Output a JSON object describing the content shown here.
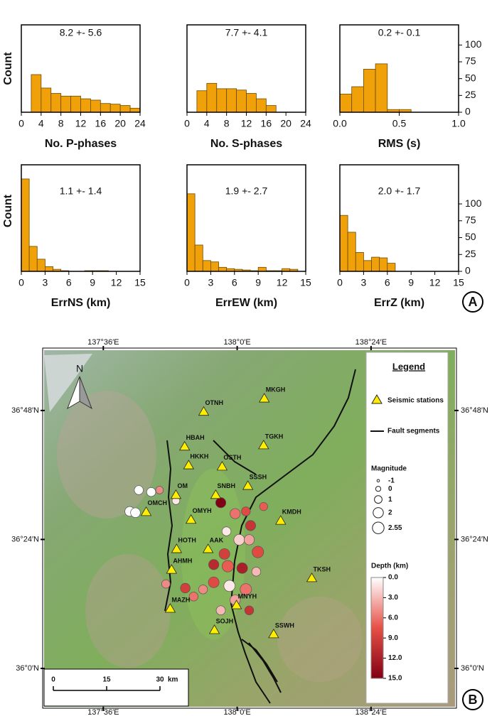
{
  "panel_labels": [
    "A",
    "B"
  ],
  "chart_data": [
    {
      "type": "histogram",
      "xlabel": "No. P-phases",
      "ylabel": "Count",
      "annotation": "8.2 +- 5.6",
      "color": "#f0a10a",
      "bins": [
        2,
        4,
        6,
        8,
        10,
        12,
        14,
        16,
        18,
        20,
        22,
        24
      ],
      "values": [
        56,
        36,
        28,
        24,
        24,
        20,
        18,
        13,
        12,
        10,
        6
      ],
      "xlim": [
        0,
        24
      ],
      "xticks": [
        0,
        4,
        8,
        12,
        16,
        20,
        24
      ],
      "ylim": [
        0,
        130
      ]
    },
    {
      "type": "histogram",
      "xlabel": "No. S-phases",
      "annotation": "7.7 +- 4.1",
      "color": "#f0a10a",
      "bins": [
        2,
        4,
        6,
        8,
        10,
        12,
        14,
        16,
        18
      ],
      "values": [
        32,
        43,
        35,
        35,
        33,
        28,
        20,
        10
      ],
      "xlim": [
        0,
        24
      ],
      "xticks": [
        0,
        4,
        8,
        12,
        16,
        20,
        24
      ],
      "ylim": [
        0,
        130
      ]
    },
    {
      "type": "histogram",
      "xlabel": "RMS (s)",
      "annotation": "0.2 +- 0.1",
      "color": "#f0a10a",
      "bins": [
        0,
        0.1,
        0.2,
        0.3,
        0.4,
        0.5,
        0.6
      ],
      "values": [
        27,
        38,
        64,
        72,
        4,
        4
      ],
      "xlim": [
        0,
        1
      ],
      "xticks": [
        {
          "value": 0,
          "label": "0.0"
        },
        {
          "value": 0.5,
          "label": "0.5"
        },
        {
          "value": 1,
          "label": "1.0"
        }
      ],
      "ylim": [
        0,
        130
      ],
      "yticks": [
        0,
        25,
        50,
        75,
        100
      ]
    },
    {
      "type": "histogram",
      "xlabel": "ErrNS (km)",
      "ylabel": "Count",
      "annotation": "1.1 +- 1.4",
      "color": "#f0a10a",
      "bins": [
        0,
        1,
        2,
        3,
        4,
        5,
        6,
        7,
        8,
        9,
        10,
        11,
        12
      ],
      "values": [
        137,
        37,
        18,
        7,
        3,
        1,
        0,
        0,
        1,
        1,
        1,
        0
      ],
      "xlim": [
        0,
        15
      ],
      "xticks": [
        0,
        3,
        6,
        9,
        12,
        15
      ],
      "ylim": [
        0,
        158
      ]
    },
    {
      "type": "histogram",
      "xlabel": "ErrEW (km)",
      "annotation": "1.9 +- 2.7",
      "color": "#f0a10a",
      "bins": [
        0,
        1,
        2,
        3,
        4,
        5,
        6,
        7,
        8,
        9,
        10,
        11,
        12,
        13,
        14
      ],
      "values": [
        115,
        39,
        16,
        14,
        6,
        4,
        3,
        2,
        1,
        6,
        1,
        1,
        4,
        3
      ],
      "xlim": [
        0,
        15
      ],
      "xticks": [
        0,
        3,
        6,
        9,
        12,
        15
      ],
      "ylim": [
        0,
        158
      ]
    },
    {
      "type": "histogram",
      "xlabel": "ErrZ (km)",
      "annotation": "2.0 +- 1.7",
      "color": "#f0a10a",
      "bins": [
        0,
        1,
        2,
        3,
        4,
        5,
        6,
        7
      ],
      "values": [
        83,
        58,
        28,
        16,
        21,
        20,
        12
      ],
      "xlim": [
        0,
        15
      ],
      "xticks": [
        0,
        3,
        6,
        9,
        12,
        15
      ],
      "ylim": [
        0,
        158
      ],
      "yticks": [
        0,
        25,
        50,
        75,
        100
      ]
    },
    {
      "type": "map",
      "xlim": [
        137.423,
        138.651
      ],
      "ylim": [
        35.881,
        36.987
      ],
      "xticks": [
        {
          "value": 137.6,
          "label": "137°36′E"
        },
        {
          "value": 138.0,
          "label": "138°0′E"
        },
        {
          "value": 138.4,
          "label": "138°24′E"
        }
      ],
      "yticks": [
        {
          "value": 36.8,
          "label": "36°48′N"
        },
        {
          "value": 36.4,
          "label": "36°24′N"
        },
        {
          "value": 36.0,
          "label": "36°0′N"
        }
      ],
      "stations": [
        {
          "name": "MKGH",
          "lon": 138.081,
          "lat": 36.837
        },
        {
          "name": "OTNH",
          "lon": 137.9,
          "lat": 36.796
        },
        {
          "name": "HBAH",
          "lon": 137.843,
          "lat": 36.688
        },
        {
          "name": "TGKH",
          "lon": 138.079,
          "lat": 36.692
        },
        {
          "name": "HKKH",
          "lon": 137.855,
          "lat": 36.63
        },
        {
          "name": "OSTH",
          "lon": 137.955,
          "lat": 36.626
        },
        {
          "name": "SSSH",
          "lon": 138.032,
          "lat": 36.566
        },
        {
          "name": "SNBH",
          "lon": 137.936,
          "lat": 36.538
        },
        {
          "name": "OMCH",
          "lon": 137.728,
          "lat": 36.485
        },
        {
          "name": "OM",
          "lon": 137.817,
          "lat": 36.538
        },
        {
          "name": "OMYH",
          "lon": 137.862,
          "lat": 36.461
        },
        {
          "name": "KMDH",
          "lon": 138.13,
          "lat": 36.458
        },
        {
          "name": "HOTH",
          "lon": 137.819,
          "lat": 36.37
        },
        {
          "name": "AAK",
          "lon": 137.913,
          "lat": 36.37
        },
        {
          "name": "AHMH",
          "lon": 137.804,
          "lat": 36.306
        },
        {
          "name": "TKSH",
          "lon": 138.223,
          "lat": 36.28
        },
        {
          "name": "MAZH",
          "lon": 137.8,
          "lat": 36.185
        },
        {
          "name": "MNYH",
          "lon": 137.998,
          "lat": 36.196
        },
        {
          "name": "SOJH",
          "lon": 137.932,
          "lat": 36.119
        },
        {
          "name": "SSWH",
          "lon": 138.109,
          "lat": 36.106
        }
      ],
      "events": [
        {
          "lon": 137.706,
          "lat": 36.553,
          "depth": 0,
          "magnitude": 1.5
        },
        {
          "lon": 137.743,
          "lat": 36.547,
          "depth": 0,
          "magnitude": 1.5
        },
        {
          "lon": 137.679,
          "lat": 36.487,
          "depth": 0,
          "magnitude": 1.8
        },
        {
          "lon": 137.696,
          "lat": 36.483,
          "depth": 0,
          "magnitude": 1.8
        },
        {
          "lon": 137.768,
          "lat": 36.553,
          "depth": 5,
          "magnitude": 1
        },
        {
          "lon": 137.817,
          "lat": 36.52,
          "depth": 1,
          "magnitude": 1
        },
        {
          "lon": 137.951,
          "lat": 36.514,
          "depth": 15,
          "magnitude": 2
        },
        {
          "lon": 138.026,
          "lat": 36.487,
          "depth": 8,
          "magnitude": 1.5
        },
        {
          "lon": 138.079,
          "lat": 36.502,
          "depth": 7,
          "magnitude": 1.2
        },
        {
          "lon": 137.994,
          "lat": 36.48,
          "depth": 6,
          "magnitude": 2
        },
        {
          "lon": 138.04,
          "lat": 36.443,
          "depth": 10,
          "magnitude": 2
        },
        {
          "lon": 137.968,
          "lat": 36.425,
          "depth": 1,
          "magnitude": 1.5
        },
        {
          "lon": 138.006,
          "lat": 36.399,
          "depth": 2,
          "magnitude": 2.2
        },
        {
          "lon": 138.036,
          "lat": 36.399,
          "depth": 4,
          "magnitude": 2
        },
        {
          "lon": 138.062,
          "lat": 36.361,
          "depth": 8,
          "magnitude": 2.5
        },
        {
          "lon": 137.962,
          "lat": 36.355,
          "depth": 9,
          "magnitude": 2.2
        },
        {
          "lon": 137.93,
          "lat": 36.322,
          "depth": 11,
          "magnitude": 2
        },
        {
          "lon": 137.972,
          "lat": 36.317,
          "depth": 7,
          "magnitude": 2.5
        },
        {
          "lon": 138.015,
          "lat": 36.311,
          "depth": 12,
          "magnitude": 2.2
        },
        {
          "lon": 138.057,
          "lat": 36.3,
          "depth": 3,
          "magnitude": 1.5
        },
        {
          "lon": 137.898,
          "lat": 36.245,
          "depth": 5,
          "magnitude": 1.5
        },
        {
          "lon": 137.93,
          "lat": 36.267,
          "depth": 8,
          "magnitude": 2.2
        },
        {
          "lon": 137.977,
          "lat": 36.256,
          "depth": 1,
          "magnitude": 2.4
        },
        {
          "lon": 138.026,
          "lat": 36.245,
          "depth": 6,
          "magnitude": 2.5
        },
        {
          "lon": 137.994,
          "lat": 36.212,
          "depth": 4,
          "magnitude": 2
        },
        {
          "lon": 137.845,
          "lat": 36.249,
          "depth": 9,
          "magnitude": 1.8
        },
        {
          "lon": 137.87,
          "lat": 36.223,
          "depth": 6,
          "magnitude": 1.5
        },
        {
          "lon": 137.787,
          "lat": 36.262,
          "depth": 5,
          "magnitude": 1.3
        },
        {
          "lon": 137.951,
          "lat": 36.18,
          "depth": 3,
          "magnitude": 1.6
        },
        {
          "lon": 138.036,
          "lat": 36.18,
          "depth": 10,
          "magnitude": 1.5
        }
      ],
      "legend": {
        "title": "Legend",
        "stations_label": "Seismic stations",
        "faults_label": "Fault segments",
        "magnitude_title": "Magnitude",
        "magnitudes": [
          -1,
          0,
          1,
          2,
          2.55
        ],
        "depth_title": "Depth (km)",
        "depth_lim": [
          0,
          15
        ],
        "depth_ticks": [
          {
            "value": 0,
            "label": "0.0"
          },
          {
            "value": 3,
            "label": "3.0"
          },
          {
            "value": 6,
            "label": "6.0"
          },
          {
            "value": 9,
            "label": "9.0"
          },
          {
            "value": 12,
            "label": "12.0"
          },
          {
            "value": 15,
            "label": "15.0"
          }
        ]
      },
      "scale_bar": {
        "ticks": [
          0,
          15,
          30
        ],
        "unit": "km"
      },
      "north_label": "N"
    }
  ]
}
